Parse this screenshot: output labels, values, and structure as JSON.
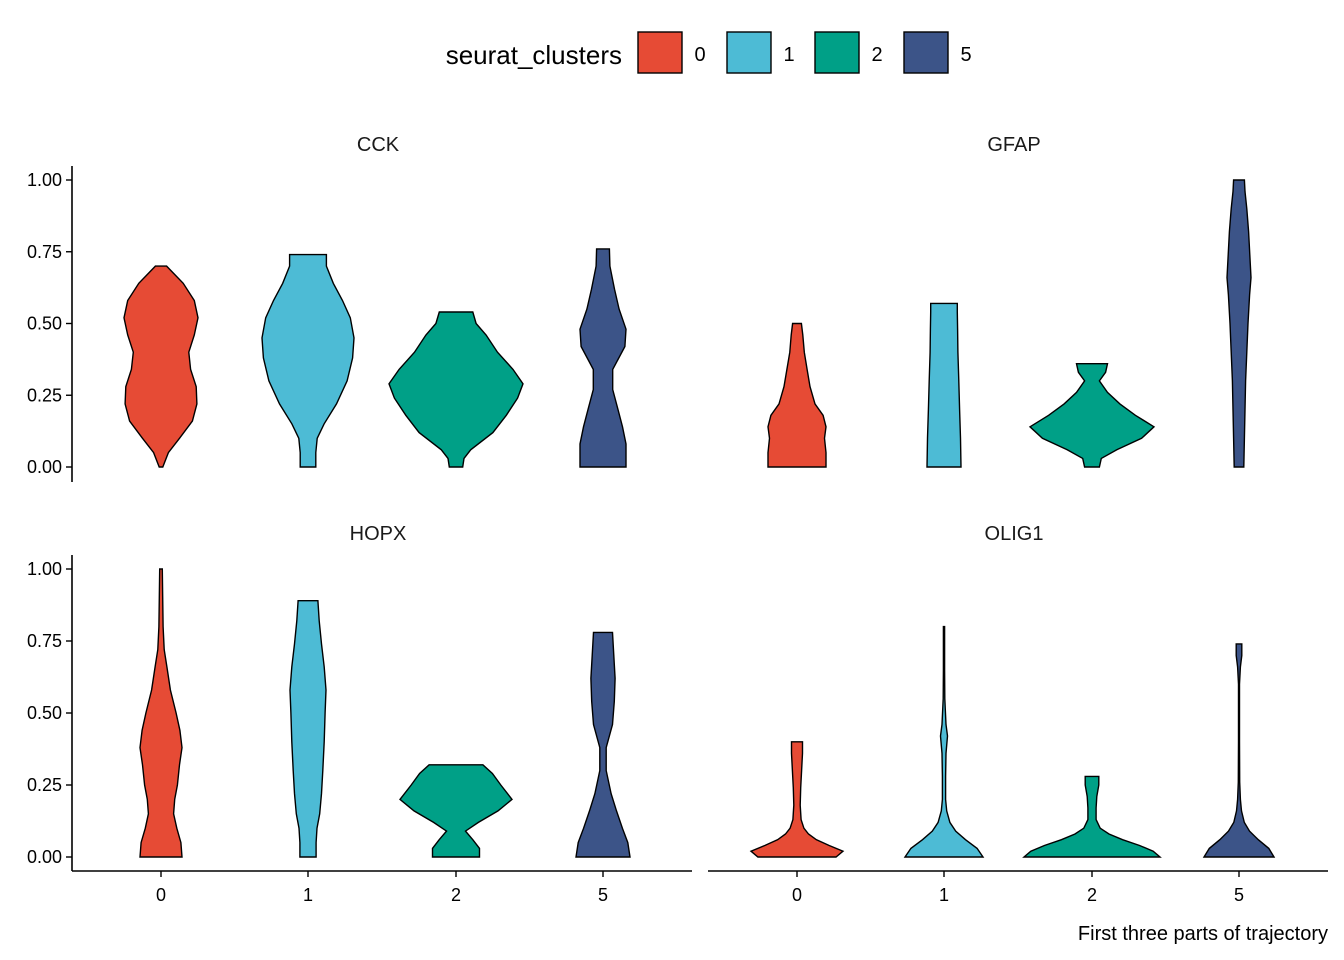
{
  "chart_data": {
    "type": "violin",
    "xlabel": "First three parts of trajectory",
    "ylabel": "",
    "categories": [
      "0",
      "1",
      "2",
      "5"
    ],
    "ylim": [
      0,
      1
    ],
    "yticks": [
      0,
      0.25,
      0.5,
      0.75,
      1
    ],
    "ytick_labels": [
      "0.00",
      "0.25",
      "0.50",
      "0.75",
      "1.00"
    ],
    "legend": {
      "title": "seurat_clusters",
      "position": "top",
      "entries": [
        {
          "label": "0",
          "color": "#E64B35"
        },
        {
          "label": "1",
          "color": "#4DBBD5"
        },
        {
          "label": "2",
          "color": "#00A087"
        },
        {
          "label": "5",
          "color": "#3C5488"
        }
      ]
    },
    "grid": false,
    "facets": [
      {
        "gene": "CCK",
        "violins": [
          {
            "cluster": "0",
            "max": 0.7,
            "profile": [
              [
                0,
                0.05
              ],
              [
                0.05,
                0.2
              ],
              [
                0.1,
                0.5
              ],
              [
                0.16,
                0.85
              ],
              [
                0.22,
                0.97
              ],
              [
                0.28,
                0.95
              ],
              [
                0.34,
                0.8
              ],
              [
                0.4,
                0.75
              ],
              [
                0.46,
                0.9
              ],
              [
                0.52,
                1.0
              ],
              [
                0.58,
                0.9
              ],
              [
                0.64,
                0.6
              ],
              [
                0.7,
                0.15
              ]
            ]
          },
          {
            "cluster": "1",
            "max": 0.74,
            "profile": [
              [
                0,
                0.17
              ],
              [
                0.05,
                0.17
              ],
              [
                0.1,
                0.2
              ],
              [
                0.15,
                0.35
              ],
              [
                0.22,
                0.62
              ],
              [
                0.3,
                0.85
              ],
              [
                0.38,
                0.97
              ],
              [
                0.45,
                1.0
              ],
              [
                0.52,
                0.92
              ],
              [
                0.58,
                0.75
              ],
              [
                0.64,
                0.55
              ],
              [
                0.7,
                0.4
              ],
              [
                0.74,
                0.4
              ]
            ]
          },
          {
            "cluster": "2",
            "max": 0.54,
            "profile": [
              [
                0,
                0.1
              ],
              [
                0.03,
                0.12
              ],
              [
                0.06,
                0.22
              ],
              [
                0.12,
                0.55
              ],
              [
                0.18,
                0.75
              ],
              [
                0.24,
                0.92
              ],
              [
                0.29,
                1.0
              ],
              [
                0.34,
                0.85
              ],
              [
                0.4,
                0.62
              ],
              [
                0.46,
                0.45
              ],
              [
                0.5,
                0.3
              ],
              [
                0.54,
                0.25
              ]
            ]
          },
          {
            "cluster": "5",
            "max": 0.76,
            "profile": [
              [
                0,
                1.0
              ],
              [
                0.08,
                1.0
              ],
              [
                0.14,
                0.85
              ],
              [
                0.2,
                0.65
              ],
              [
                0.27,
                0.42
              ],
              [
                0.34,
                0.42
              ],
              [
                0.42,
                0.95
              ],
              [
                0.48,
                1.0
              ],
              [
                0.55,
                0.7
              ],
              [
                0.62,
                0.5
              ],
              [
                0.7,
                0.3
              ],
              [
                0.76,
                0.28
              ]
            ]
          }
        ]
      },
      {
        "gene": "GFAP",
        "violins": [
          {
            "cluster": "0",
            "max": 0.5,
            "profile": [
              [
                0,
                1.0
              ],
              [
                0.05,
                1.0
              ],
              [
                0.1,
                0.95
              ],
              [
                0.14,
                1.0
              ],
              [
                0.18,
                0.9
              ],
              [
                0.22,
                0.62
              ],
              [
                0.28,
                0.45
              ],
              [
                0.34,
                0.35
              ],
              [
                0.4,
                0.25
              ],
              [
                0.46,
                0.2
              ],
              [
                0.5,
                0.15
              ]
            ]
          },
          {
            "cluster": "1",
            "max": 0.57,
            "profile": [
              [
                0,
                1.0
              ],
              [
                0.1,
                0.97
              ],
              [
                0.2,
                0.92
              ],
              [
                0.3,
                0.87
              ],
              [
                0.4,
                0.82
              ],
              [
                0.48,
                0.8
              ],
              [
                0.54,
                0.78
              ],
              [
                0.57,
                0.78
              ]
            ]
          },
          {
            "cluster": "2",
            "max": 0.36,
            "profile": [
              [
                0,
                0.12
              ],
              [
                0.03,
                0.15
              ],
              [
                0.06,
                0.4
              ],
              [
                0.1,
                0.8
              ],
              [
                0.14,
                1.0
              ],
              [
                0.18,
                0.7
              ],
              [
                0.22,
                0.45
              ],
              [
                0.26,
                0.25
              ],
              [
                0.3,
                0.12
              ],
              [
                0.33,
                0.22
              ],
              [
                0.36,
                0.25
              ]
            ]
          },
          {
            "cluster": "5",
            "max": 1.0,
            "profile": [
              [
                0,
                0.4
              ],
              [
                0.1,
                0.45
              ],
              [
                0.2,
                0.5
              ],
              [
                0.3,
                0.55
              ],
              [
                0.4,
                0.65
              ],
              [
                0.5,
                0.75
              ],
              [
                0.6,
                0.88
              ],
              [
                0.66,
                1.0
              ],
              [
                0.74,
                0.9
              ],
              [
                0.82,
                0.8
              ],
              [
                0.9,
                0.65
              ],
              [
                0.96,
                0.5
              ],
              [
                1.0,
                0.45
              ]
            ]
          }
        ]
      },
      {
        "gene": "HOPX",
        "violins": [
          {
            "cluster": "0",
            "max": 1.0,
            "profile": [
              [
                0,
                1.0
              ],
              [
                0.05,
                0.95
              ],
              [
                0.1,
                0.75
              ],
              [
                0.15,
                0.6
              ],
              [
                0.2,
                0.65
              ],
              [
                0.25,
                0.78
              ],
              [
                0.32,
                0.88
              ],
              [
                0.38,
                1.0
              ],
              [
                0.44,
                0.9
              ],
              [
                0.5,
                0.72
              ],
              [
                0.58,
                0.45
              ],
              [
                0.66,
                0.28
              ],
              [
                0.72,
                0.15
              ],
              [
                0.8,
                0.1
              ],
              [
                0.9,
                0.08
              ],
              [
                1.0,
                0.06
              ]
            ]
          },
          {
            "cluster": "1",
            "max": 0.89,
            "profile": [
              [
                0,
                0.45
              ],
              [
                0.05,
                0.45
              ],
              [
                0.1,
                0.5
              ],
              [
                0.15,
                0.65
              ],
              [
                0.22,
                0.75
              ],
              [
                0.3,
                0.82
              ],
              [
                0.4,
                0.9
              ],
              [
                0.5,
                0.95
              ],
              [
                0.58,
                1.0
              ],
              [
                0.66,
                0.9
              ],
              [
                0.74,
                0.75
              ],
              [
                0.82,
                0.62
              ],
              [
                0.89,
                0.55
              ]
            ]
          },
          {
            "cluster": "2",
            "max": 0.32,
            "profile": [
              [
                0,
                0.42
              ],
              [
                0.03,
                0.42
              ],
              [
                0.06,
                0.3
              ],
              [
                0.09,
                0.17
              ],
              [
                0.12,
                0.4
              ],
              [
                0.16,
                0.75
              ],
              [
                0.2,
                1.0
              ],
              [
                0.25,
                0.8
              ],
              [
                0.29,
                0.65
              ],
              [
                0.32,
                0.48
              ]
            ]
          },
          {
            "cluster": "5",
            "max": 0.78,
            "profile": [
              [
                0,
                1.0
              ],
              [
                0.05,
                0.92
              ],
              [
                0.1,
                0.72
              ],
              [
                0.16,
                0.5
              ],
              [
                0.22,
                0.3
              ],
              [
                0.3,
                0.12
              ],
              [
                0.38,
                0.12
              ],
              [
                0.46,
                0.35
              ],
              [
                0.54,
                0.42
              ],
              [
                0.62,
                0.45
              ],
              [
                0.7,
                0.4
              ],
              [
                0.78,
                0.35
              ]
            ]
          }
        ]
      },
      {
        "gene": "OLIG1",
        "violins": [
          {
            "cluster": "0",
            "max": 0.4,
            "profile": [
              [
                0,
                0.85
              ],
              [
                0.02,
                1.0
              ],
              [
                0.04,
                0.7
              ],
              [
                0.06,
                0.42
              ],
              [
                0.08,
                0.25
              ],
              [
                0.1,
                0.15
              ],
              [
                0.13,
                0.09
              ],
              [
                0.18,
                0.07
              ],
              [
                0.24,
                0.08
              ],
              [
                0.3,
                0.1
              ],
              [
                0.36,
                0.12
              ],
              [
                0.4,
                0.12
              ]
            ]
          },
          {
            "cluster": "1",
            "max": 0.8,
            "profile": [
              [
                0,
                1.0
              ],
              [
                0.03,
                0.85
              ],
              [
                0.06,
                0.55
              ],
              [
                0.09,
                0.3
              ],
              [
                0.12,
                0.15
              ],
              [
                0.16,
                0.07
              ],
              [
                0.2,
                0.04
              ],
              [
                0.28,
                0.04
              ],
              [
                0.36,
                0.05
              ],
              [
                0.42,
                0.09
              ],
              [
                0.46,
                0.05
              ],
              [
                0.55,
                0.02
              ],
              [
                0.65,
                0.015
              ],
              [
                0.8,
                0.015
              ]
            ]
          },
          {
            "cluster": "2",
            "max": 0.28,
            "profile": [
              [
                0,
                1.0
              ],
              [
                0.02,
                0.9
              ],
              [
                0.04,
                0.7
              ],
              [
                0.06,
                0.45
              ],
              [
                0.08,
                0.25
              ],
              [
                0.1,
                0.12
              ],
              [
                0.13,
                0.06
              ],
              [
                0.17,
                0.06
              ],
              [
                0.21,
                0.07
              ],
              [
                0.25,
                0.1
              ],
              [
                0.28,
                0.1
              ]
            ]
          },
          {
            "cluster": "5",
            "max": 0.74,
            "profile": [
              [
                0,
                1.0
              ],
              [
                0.03,
                0.85
              ],
              [
                0.06,
                0.55
              ],
              [
                0.09,
                0.3
              ],
              [
                0.12,
                0.15
              ],
              [
                0.16,
                0.07
              ],
              [
                0.2,
                0.04
              ],
              [
                0.26,
                0.02
              ],
              [
                0.4,
                0.015
              ],
              [
                0.6,
                0.015
              ],
              [
                0.66,
                0.04
              ],
              [
                0.7,
                0.08
              ],
              [
                0.74,
                0.08
              ]
            ]
          }
        ]
      }
    ]
  }
}
